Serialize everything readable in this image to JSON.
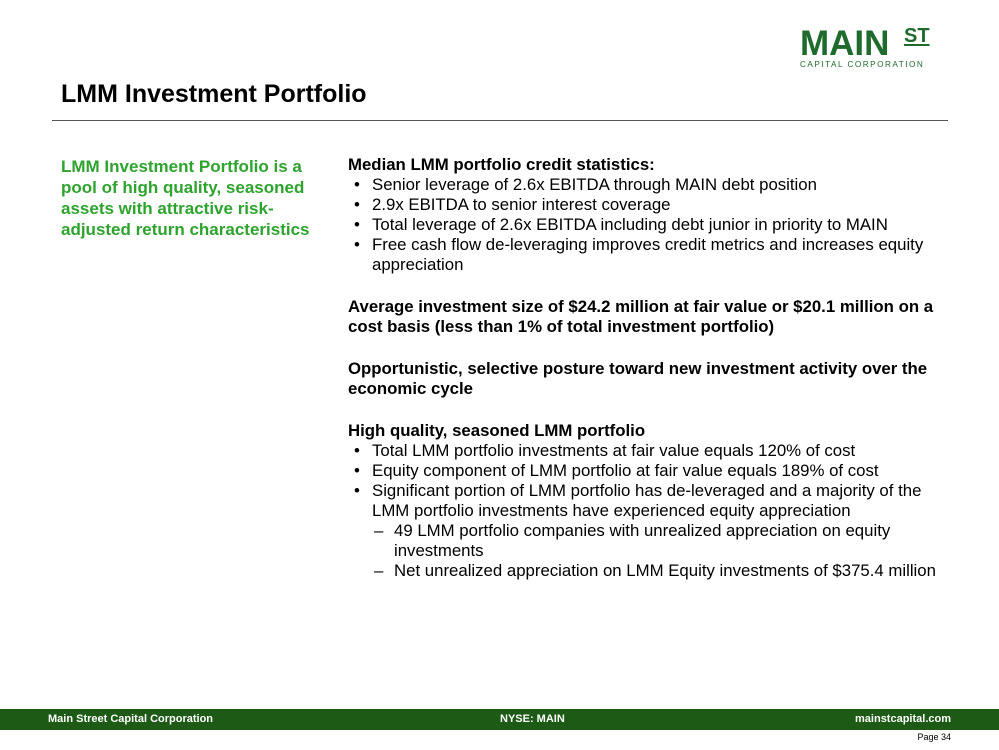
{
  "logo": {
    "main": "MAIN",
    "st": "ST",
    "sub": "CAPITAL CORPORATION"
  },
  "title": "LMM Investment Portfolio",
  "callout": "LMM Investment Portfolio is a pool of high quality, seasoned assets with attractive risk-adjusted return characteristics",
  "sections": {
    "credit_stats": {
      "heading": "Median LMM portfolio credit statistics:",
      "bullets": [
        "Senior leverage of 2.6x EBITDA through MAIN debt position",
        "2.9x EBITDA to senior interest coverage",
        "Total leverage of 2.6x EBITDA including debt junior in priority to MAIN",
        "Free cash flow de-leveraging improves credit metrics and increases equity appreciation"
      ]
    },
    "avg_size": "Average investment size of $24.2 million at fair value or $20.1 million on a cost basis (less than 1% of total investment portfolio)",
    "posture": "Opportunistic, selective posture toward new investment activity over the economic cycle",
    "quality": {
      "heading": "High quality, seasoned LMM portfolio",
      "bullets": [
        "Total LMM portfolio investments at fair value equals 120% of cost",
        "Equity component of LMM portfolio at fair value equals 189% of cost",
        "Significant portion of LMM portfolio has de-leveraged and a majority of the LMM portfolio investments have experienced equity appreciation"
      ],
      "sub_bullets": [
        "49 LMM portfolio companies with unrealized appreciation on equity investments",
        "Net unrealized appreciation on LMM Equity investments of $375.4 million"
      ]
    }
  },
  "footer": {
    "left": "Main Street Capital Corporation",
    "center": "NYSE: MAIN",
    "right": "mainstcapital.com"
  },
  "page": "Page  34",
  "colors": {
    "brand_green": "#1f6b2e",
    "callout_green": "#2ea32e",
    "footer_bg": "#1c5a15"
  }
}
